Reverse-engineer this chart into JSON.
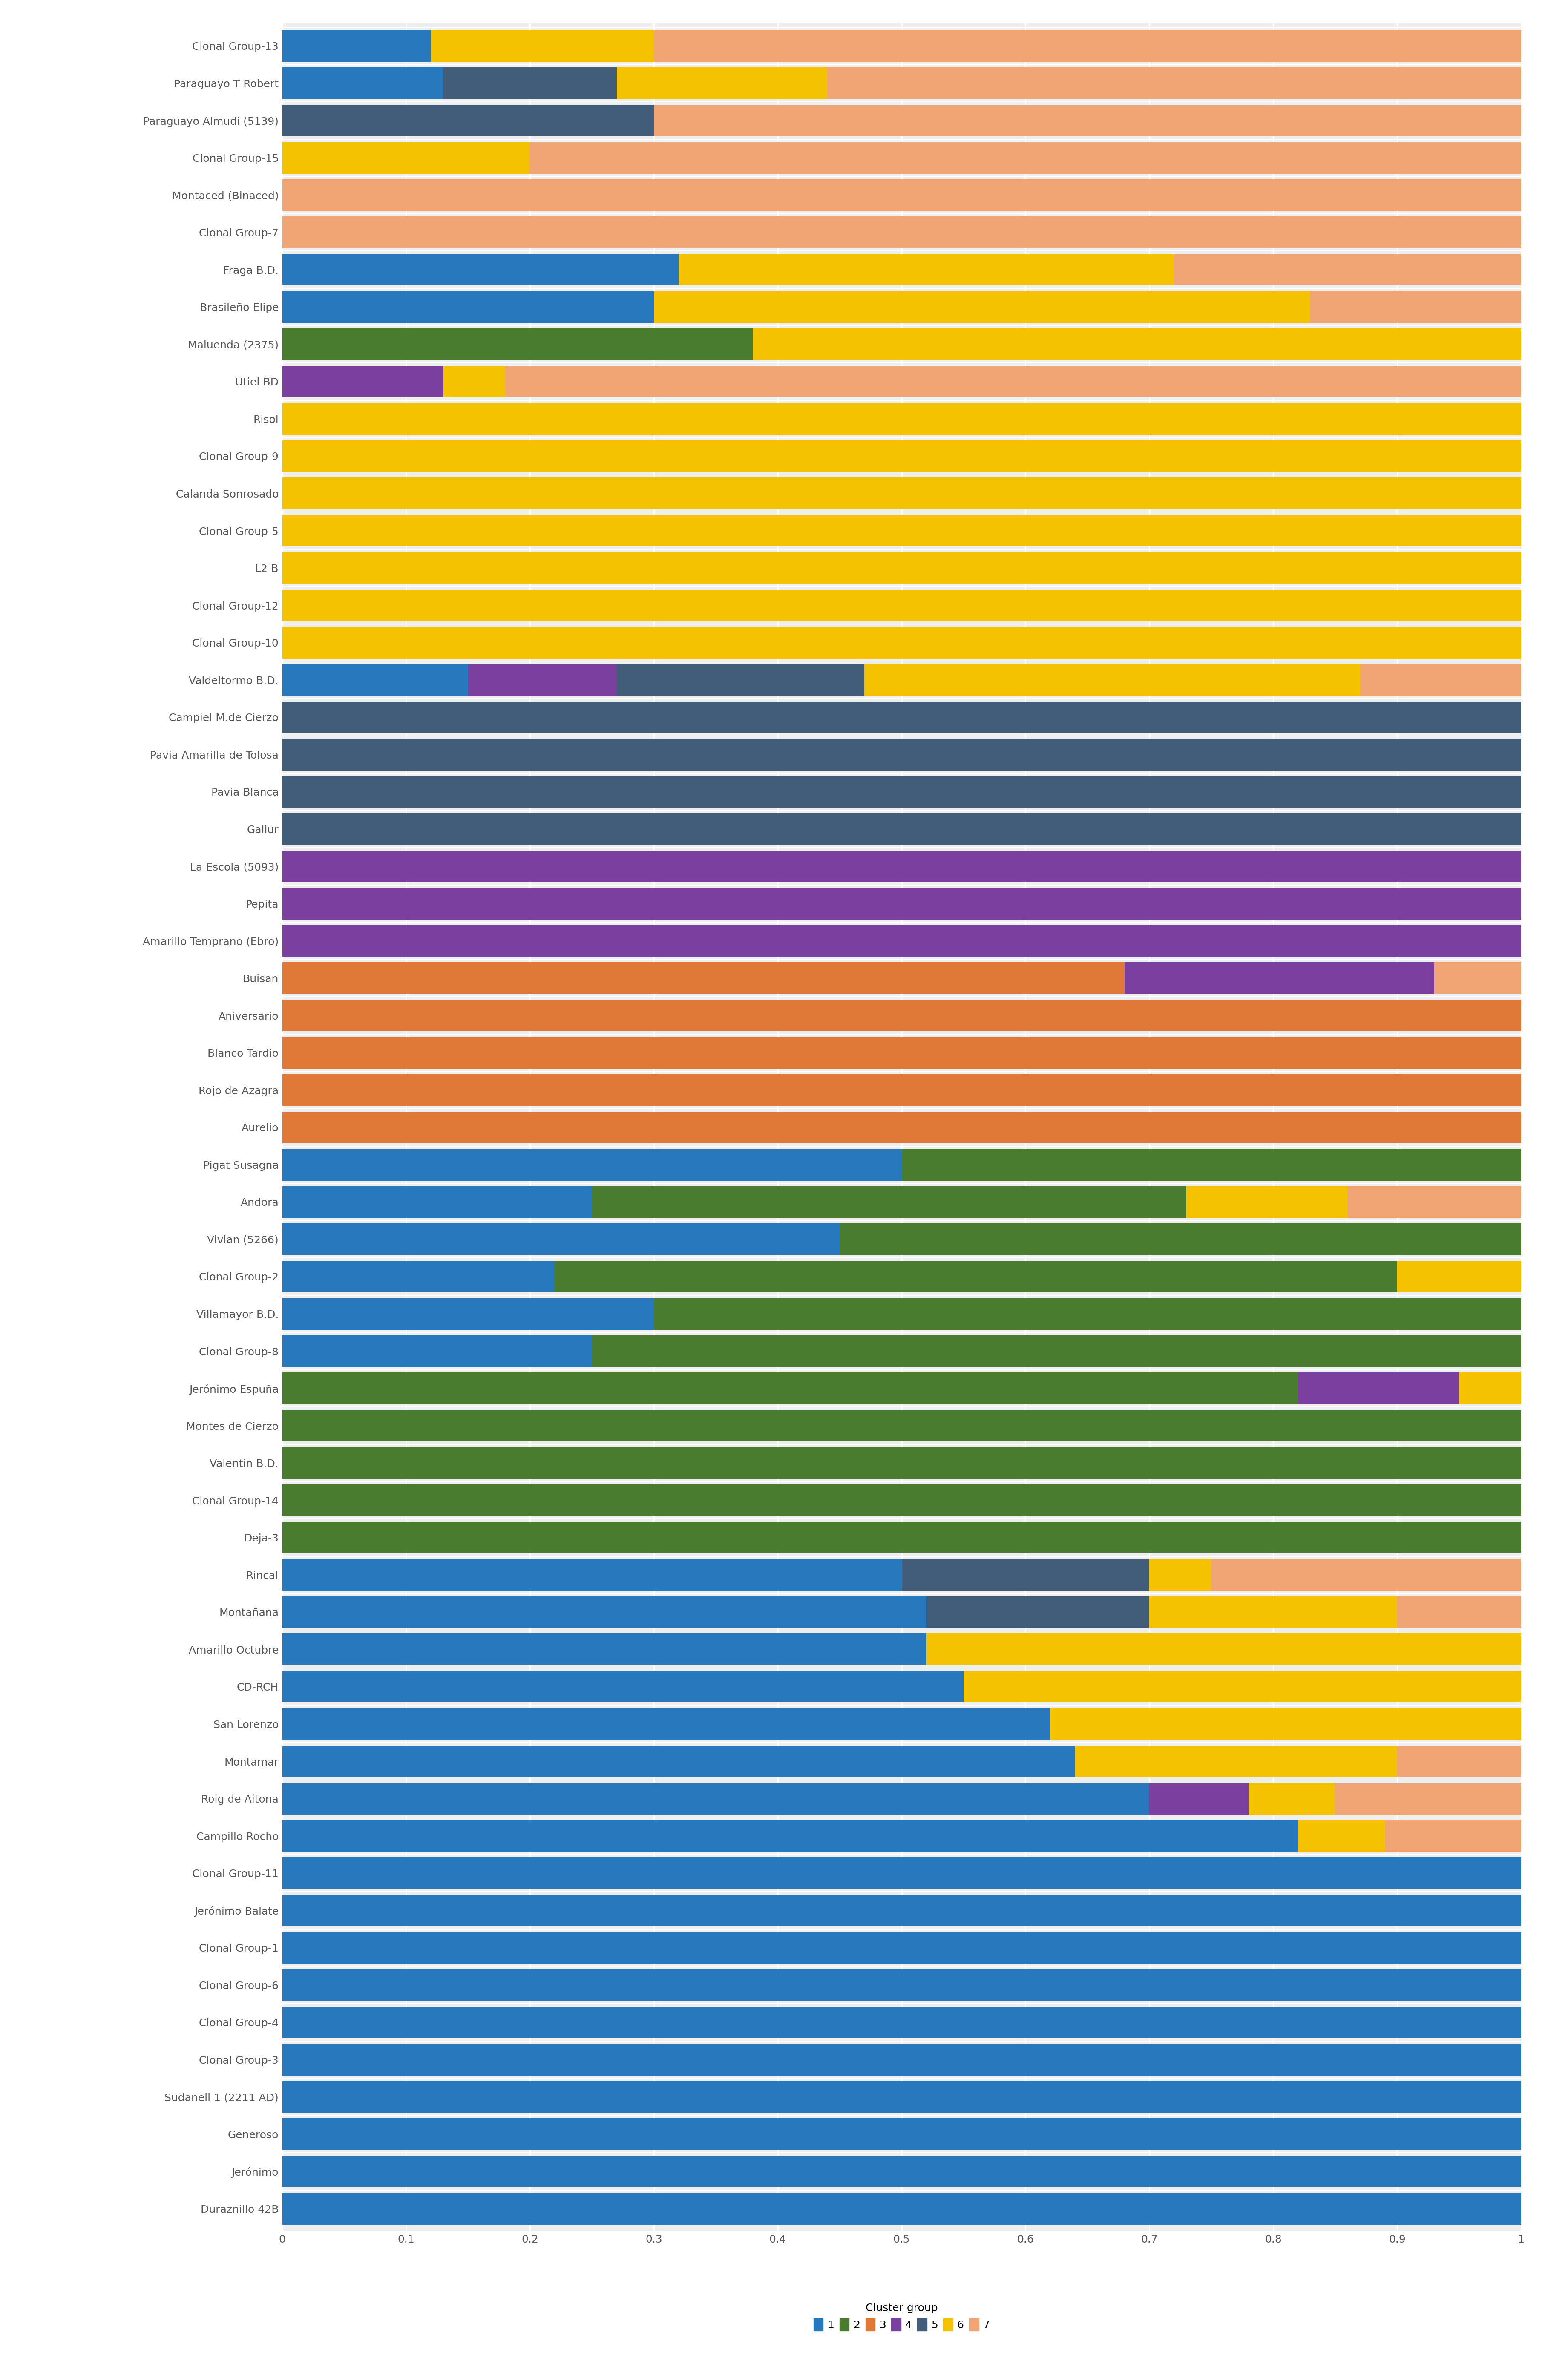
{
  "categories": [
    "Clonal Group-13",
    "Paraguayo T Robert",
    "Paraguayo Almudi (5139)",
    "Clonal Group-15",
    "Montaced (Binaced)",
    "Clonal Group-7",
    "Fraga B.D.",
    "Brasileño Elipe",
    "Maluenda (2375)",
    "Utiel BD",
    "Risol",
    "Clonal Group-9",
    "Calanda Sonrosado",
    "Clonal Group-5",
    "L2-B",
    "Clonal Group-12",
    "Clonal Group-10",
    "Valdeltormo B.D.",
    "Campiel M.de Cierzo",
    "Pavia Amarilla de Tolosa",
    "Pavia Blanca",
    "Gallur",
    "La Escola (5093)",
    "Pepita",
    "Amarillo Temprano (Ebro)",
    "Buisan",
    "Aniversario",
    "Blanco Tardio",
    "Rojo de Azagra",
    "Aurelio",
    "Pigat Susagna",
    "Andora",
    "Vivian (5266)",
    "Clonal Group-2",
    "Villamayor B.D.",
    "Clonal Group-8",
    "Jerónimo Espuña",
    "Montes de Cierzo",
    "Valentin B.D.",
    "Clonal Group-14",
    "Deja-3",
    "Rincal",
    "Montañana",
    "Amarillo Octubre",
    "CD-RCH",
    "San Lorenzo",
    "Montamar",
    "Roig de Aitona",
    "Campillo Rocho",
    "Clonal Group-11",
    "Jerónimo Balate",
    "Clonal Group-1",
    "Clonal Group-6",
    "Clonal Group-4",
    "Clonal Group-3",
    "Sudanell 1 (2211 AD)",
    "Generoso",
    "Jerónimo",
    "Duraznillo 42B"
  ],
  "cluster_colors": [
    "#2878BD",
    "#4A7C2F",
    "#E07838",
    "#7B3FA0",
    "#415D7A",
    "#F5C200",
    "#F2A574"
  ],
  "cluster_names": [
    "1",
    "2",
    "3",
    "4",
    "5",
    "6",
    "7"
  ],
  "data": [
    [
      0.12,
      0.0,
      0.0,
      0.0,
      0.0,
      0.18,
      0.7
    ],
    [
      0.13,
      0.0,
      0.0,
      0.0,
      0.14,
      0.17,
      0.56
    ],
    [
      0.0,
      0.0,
      0.0,
      0.0,
      0.3,
      0.0,
      0.7
    ],
    [
      0.0,
      0.0,
      0.0,
      0.0,
      0.0,
      0.2,
      0.8
    ],
    [
      0.0,
      0.0,
      0.0,
      0.0,
      0.0,
      0.0,
      1.0
    ],
    [
      0.0,
      0.0,
      0.0,
      0.0,
      0.0,
      0.0,
      1.0
    ],
    [
      0.32,
      0.0,
      0.0,
      0.0,
      0.0,
      0.4,
      0.28
    ],
    [
      0.3,
      0.0,
      0.0,
      0.0,
      0.0,
      0.53,
      0.17
    ],
    [
      0.0,
      0.38,
      0.0,
      0.0,
      0.0,
      0.62,
      0.0
    ],
    [
      0.0,
      0.0,
      0.0,
      0.13,
      0.0,
      0.05,
      0.82
    ],
    [
      0.0,
      0.0,
      0.0,
      0.0,
      0.0,
      1.0,
      0.0
    ],
    [
      0.0,
      0.0,
      0.0,
      0.0,
      0.0,
      1.0,
      0.0
    ],
    [
      0.0,
      0.0,
      0.0,
      0.0,
      0.0,
      1.0,
      0.0
    ],
    [
      0.0,
      0.0,
      0.0,
      0.0,
      0.0,
      1.0,
      0.0
    ],
    [
      0.0,
      0.0,
      0.0,
      0.0,
      0.0,
      1.0,
      0.0
    ],
    [
      0.0,
      0.0,
      0.0,
      0.0,
      0.0,
      1.0,
      0.0
    ],
    [
      0.0,
      0.0,
      0.0,
      0.0,
      0.0,
      1.0,
      0.0
    ],
    [
      0.15,
      0.0,
      0.0,
      0.12,
      0.2,
      0.4,
      0.13
    ],
    [
      0.0,
      0.0,
      0.0,
      0.0,
      1.0,
      0.0,
      0.0
    ],
    [
      0.0,
      0.0,
      0.0,
      0.0,
      1.0,
      0.0,
      0.0
    ],
    [
      0.0,
      0.0,
      0.0,
      0.0,
      1.0,
      0.0,
      0.0
    ],
    [
      0.0,
      0.0,
      0.0,
      0.0,
      1.0,
      0.0,
      0.0
    ],
    [
      0.0,
      0.0,
      0.0,
      1.0,
      0.0,
      0.0,
      0.0
    ],
    [
      0.0,
      0.0,
      0.0,
      1.0,
      0.0,
      0.0,
      0.0
    ],
    [
      0.0,
      0.0,
      0.0,
      1.0,
      0.0,
      0.0,
      0.0
    ],
    [
      0.0,
      0.0,
      0.68,
      0.25,
      0.0,
      0.0,
      0.07
    ],
    [
      0.0,
      0.0,
      1.0,
      0.0,
      0.0,
      0.0,
      0.0
    ],
    [
      0.0,
      0.0,
      1.0,
      0.0,
      0.0,
      0.0,
      0.0
    ],
    [
      0.0,
      0.0,
      1.0,
      0.0,
      0.0,
      0.0,
      0.0
    ],
    [
      0.0,
      0.0,
      1.0,
      0.0,
      0.0,
      0.0,
      0.0
    ],
    [
      0.5,
      0.5,
      0.0,
      0.0,
      0.0,
      0.0,
      0.0
    ],
    [
      0.25,
      0.48,
      0.0,
      0.0,
      0.0,
      0.13,
      0.14
    ],
    [
      0.45,
      0.55,
      0.0,
      0.0,
      0.0,
      0.0,
      0.0
    ],
    [
      0.22,
      0.68,
      0.0,
      0.0,
      0.0,
      0.1,
      0.0
    ],
    [
      0.3,
      0.7,
      0.0,
      0.0,
      0.0,
      0.0,
      0.0
    ],
    [
      0.25,
      0.75,
      0.0,
      0.0,
      0.0,
      0.0,
      0.0
    ],
    [
      0.0,
      0.82,
      0.0,
      0.13,
      0.0,
      0.05,
      0.0
    ],
    [
      0.0,
      1.0,
      0.0,
      0.0,
      0.0,
      0.0,
      0.0
    ],
    [
      0.0,
      1.0,
      0.0,
      0.0,
      0.0,
      0.0,
      0.0
    ],
    [
      0.0,
      1.0,
      0.0,
      0.0,
      0.0,
      0.0,
      0.0
    ],
    [
      0.0,
      1.0,
      0.0,
      0.0,
      0.0,
      0.0,
      0.0
    ],
    [
      0.5,
      0.0,
      0.0,
      0.0,
      0.2,
      0.05,
      0.25
    ],
    [
      0.52,
      0.0,
      0.0,
      0.0,
      0.18,
      0.2,
      0.1
    ],
    [
      0.52,
      0.0,
      0.0,
      0.0,
      0.0,
      0.48,
      0.0
    ],
    [
      0.55,
      0.0,
      0.0,
      0.0,
      0.0,
      0.45,
      0.0
    ],
    [
      0.62,
      0.0,
      0.0,
      0.0,
      0.0,
      0.38,
      0.0
    ],
    [
      0.64,
      0.0,
      0.0,
      0.0,
      0.0,
      0.26,
      0.1
    ],
    [
      0.7,
      0.0,
      0.0,
      0.08,
      0.0,
      0.07,
      0.15
    ],
    [
      0.82,
      0.0,
      0.0,
      0.0,
      0.0,
      0.07,
      0.11
    ],
    [
      1.0,
      0.0,
      0.0,
      0.0,
      0.0,
      0.0,
      0.0
    ],
    [
      1.0,
      0.0,
      0.0,
      0.0,
      0.0,
      0.0,
      0.0
    ],
    [
      1.0,
      0.0,
      0.0,
      0.0,
      0.0,
      0.0,
      0.0
    ],
    [
      1.0,
      0.0,
      0.0,
      0.0,
      0.0,
      0.0,
      0.0
    ],
    [
      1.0,
      0.0,
      0.0,
      0.0,
      0.0,
      0.0,
      0.0
    ],
    [
      1.0,
      0.0,
      0.0,
      0.0,
      0.0,
      0.0,
      0.0
    ],
    [
      1.0,
      0.0,
      0.0,
      0.0,
      0.0,
      0.0,
      0.0
    ],
    [
      1.0,
      0.0,
      0.0,
      0.0,
      0.0,
      0.0,
      0.0
    ],
    [
      1.0,
      0.0,
      0.0,
      0.0,
      0.0,
      0.0,
      0.0
    ],
    [
      1.0,
      0.0,
      0.0,
      0.0,
      0.0,
      0.0,
      0.0
    ]
  ],
  "xlabel": "Cluster group",
  "xlim": [
    0,
    1
  ],
  "xticks": [
    0.0,
    0.1,
    0.2,
    0.3,
    0.4,
    0.5,
    0.6,
    0.7,
    0.8,
    0.9,
    1.0
  ],
  "xtick_labels": [
    "0",
    "0.1",
    "0.2",
    "0.3",
    "0.4",
    "0.5",
    "0.6",
    "0.7",
    "0.8",
    "0.9",
    "1"
  ],
  "background_color": "#ffffff",
  "plot_bg_color": "#efefef",
  "bar_height": 0.85,
  "grid_color": "#ffffff",
  "ytick_fontsize": 18,
  "xtick_fontsize": 18,
  "legend_fontsize": 18
}
